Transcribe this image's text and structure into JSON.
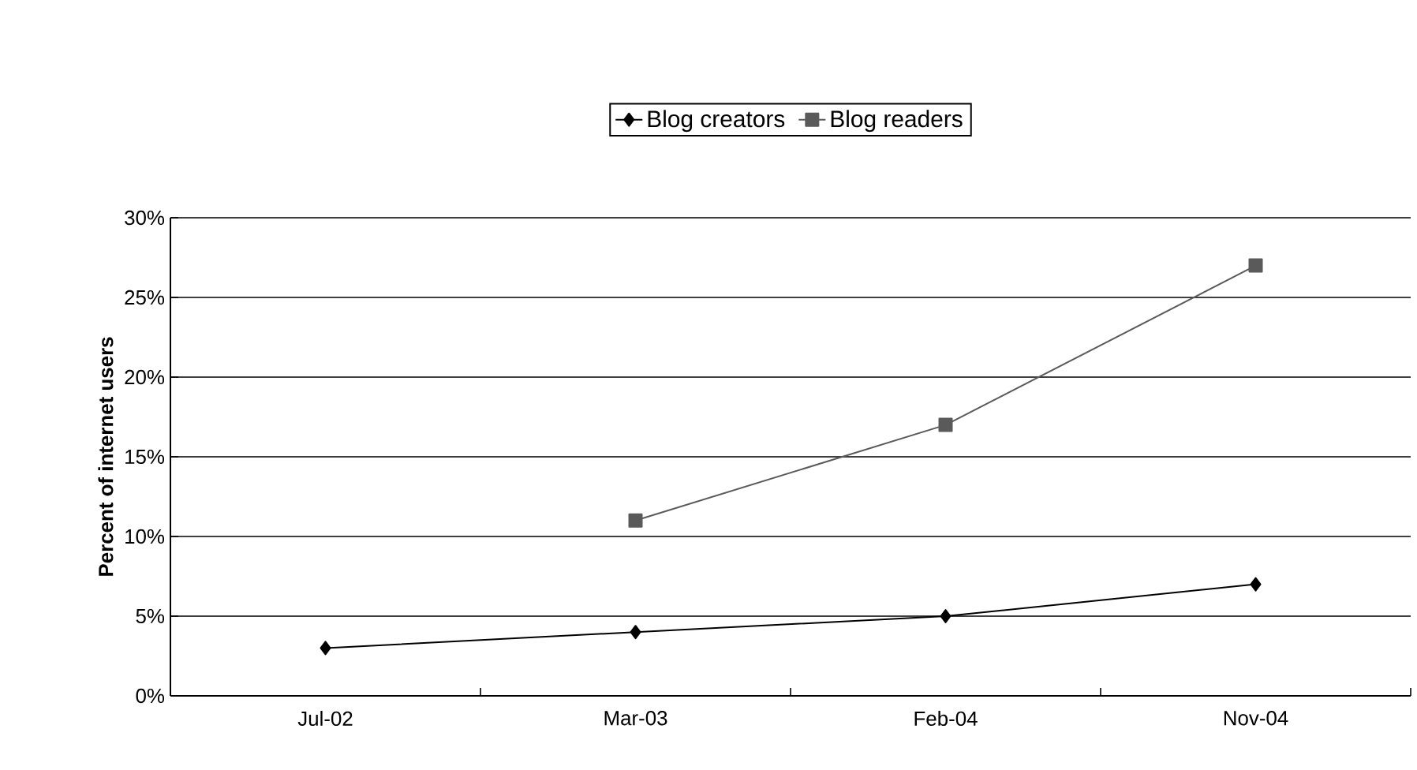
{
  "chart_data": {
    "type": "line",
    "ylabel": "Percent of internet users",
    "categories": [
      "Jul-02",
      "Mar-03",
      "Feb-04",
      "Nov-04"
    ],
    "series": [
      {
        "name": "Blog creators",
        "color": "#000000",
        "marker": "diamond",
        "values": [
          3,
          4,
          5,
          7
        ]
      },
      {
        "name": "Blog readers",
        "color": "#5a5a5a",
        "marker": "square",
        "values": [
          null,
          11,
          17,
          27
        ]
      }
    ],
    "ylim": [
      0,
      30
    ],
    "yticks": [
      {
        "value": 0,
        "label": "0%"
      },
      {
        "value": 5,
        "label": "5%"
      },
      {
        "value": 10,
        "label": "10%"
      },
      {
        "value": 15,
        "label": "15%"
      },
      {
        "value": 20,
        "label": "20%"
      },
      {
        "value": 25,
        "label": "25%"
      },
      {
        "value": 30,
        "label": "30%"
      }
    ],
    "grid": "y",
    "legend": "top",
    "line_style": "solid"
  }
}
